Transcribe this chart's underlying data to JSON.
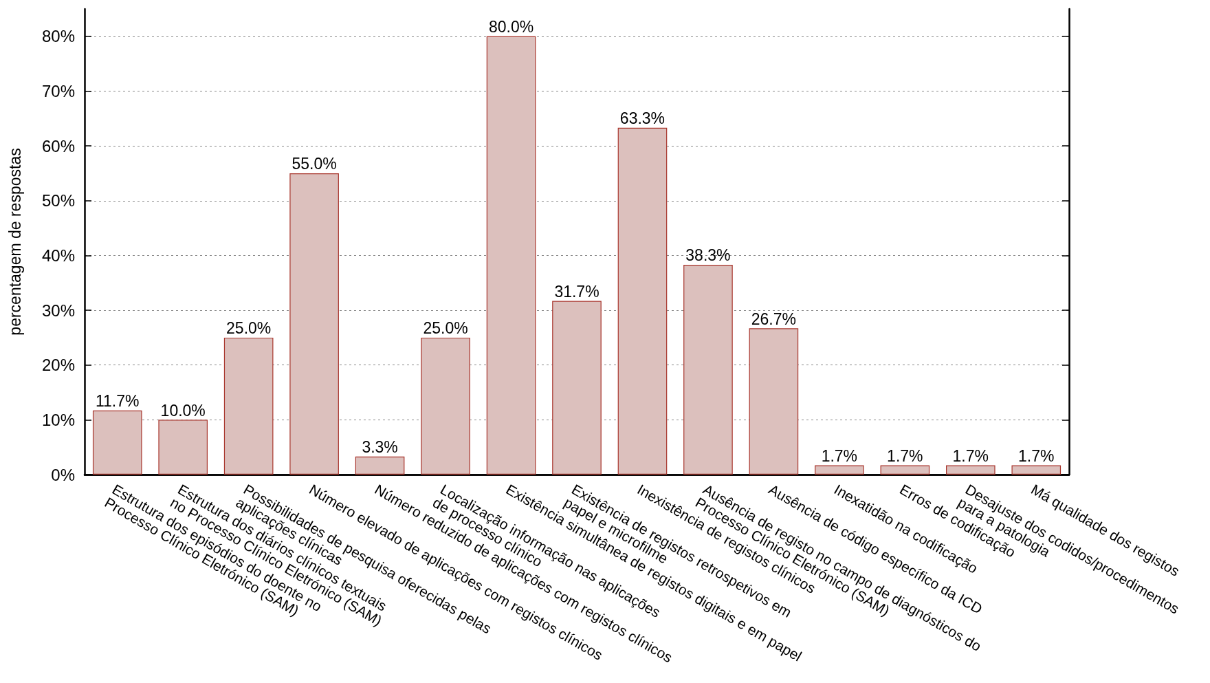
{
  "chart_data": {
    "type": "bar",
    "ylabel": "percentagem de respostas",
    "categories": [
      "Estrutura dos episódios do doente no\nProcesso Clínico Eletrónico (SAM)",
      "Estrutura dos diários clínicos textuais\nno Processo Clínico Eletrónico (SAM)",
      "Possibilidades de pesquisa oferecidas pelas\naplicações clínicas",
      "Número elevado de aplicações com registos clínicos",
      "Número reduzido de aplicações com registos clínicos",
      "Localização informação nas aplicações\nde processo clínico",
      "Existência simultânea de registos digitais e em papel",
      "Existência de registos retrospetivos em\npapel e microfilme",
      "Inexistência de registos clínicos",
      "Ausência de registo no campo de diagnósticos do\nProcesso Clínico Eletrónico (SAM)",
      "Ausência de código específico da ICD",
      "Inexatidão na codificação",
      "Erros de codificação",
      "Desajuste dos codidos/procedimentos\npara a patologia",
      "Má qualidade dos registos"
    ],
    "values": [
      11.7,
      10.0,
      25.0,
      55.0,
      3.3,
      25.0,
      80.0,
      31.7,
      63.3,
      38.3,
      26.7,
      1.7,
      1.7,
      1.7,
      1.7
    ],
    "value_labels": [
      "11.7%",
      "10.0%",
      "25.0%",
      "55.0%",
      "3.3%",
      "25.0%",
      "80.0%",
      "31.7%",
      "63.3%",
      "38.3%",
      "26.7%",
      "1.7%",
      "1.7%",
      "1.7%",
      "1.7%"
    ],
    "color": "#dcc0bd",
    "ylim": [
      0,
      85
    ],
    "yticks": [
      {
        "value": 0,
        "label": "0%"
      },
      {
        "value": 10,
        "label": "10%"
      },
      {
        "value": 20,
        "label": "20%"
      },
      {
        "value": 30,
        "label": "30%"
      },
      {
        "value": 40,
        "label": "40%"
      },
      {
        "value": 50,
        "label": "50%"
      },
      {
        "value": 60,
        "label": "60%"
      },
      {
        "value": 70,
        "label": "70%"
      },
      {
        "value": 80,
        "label": "80%"
      }
    ],
    "grid": "y"
  }
}
